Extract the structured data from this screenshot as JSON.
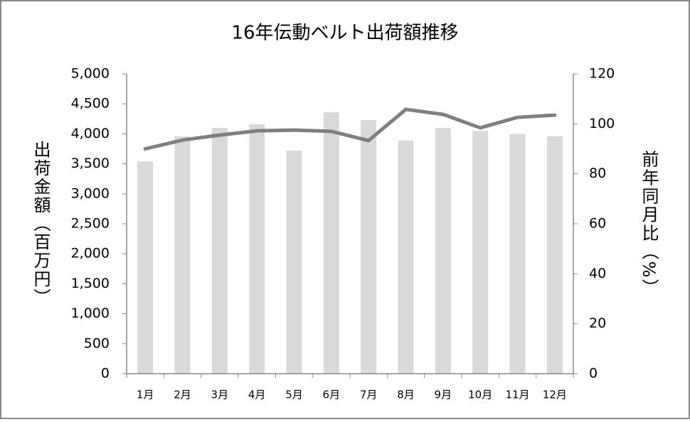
{
  "chart_data": {
    "type": "bar_line",
    "title": "16年伝動ベルト出荷額推移",
    "y_label": "出荷金額（百万円）",
    "y2_label": "前年同月比（%）",
    "categories": [
      "1月",
      "2月",
      "3月",
      "4月",
      "5月",
      "6月",
      "7月",
      "8月",
      "9月",
      "10月",
      "11月",
      "12月"
    ],
    "series": [
      {
        "name": "出荷額",
        "type": "bar",
        "color": "#d9d9d9",
        "values": [
          3540,
          3960,
          4100,
          4160,
          3720,
          4360,
          4230,
          3890,
          4100,
          4050,
          4000,
          3960
        ]
      },
      {
        "name": "前年同月比",
        "type": "line",
        "axis": "y2",
        "color": "#7f7f7f",
        "values": [
          90,
          93.5,
          95.5,
          97.2,
          97.5,
          97,
          93.3,
          105.8,
          103.8,
          98.4,
          102.6,
          103.5
        ]
      }
    ],
    "ylim": [
      0,
      5000
    ],
    "yticks": [
      0,
      500,
      {
        "value": 1000,
        "label": "1,000"
      },
      {
        "value": 1500,
        "label": "1,500"
      },
      {
        "value": 2000,
        "label": "2,000"
      },
      {
        "value": 2500,
        "label": "2,500"
      },
      {
        "value": 3000,
        "label": "3,000"
      },
      {
        "value": 3500,
        "label": "3,500"
      },
      {
        "value": 4000,
        "label": "4,000"
      },
      {
        "value": 4500,
        "label": "4,500"
      },
      {
        "value": 5000,
        "label": "5,000"
      }
    ],
    "y2lim": [
      0,
      120
    ],
    "y2ticks": [
      0,
      20,
      40,
      60,
      80,
      100,
      120
    ]
  }
}
